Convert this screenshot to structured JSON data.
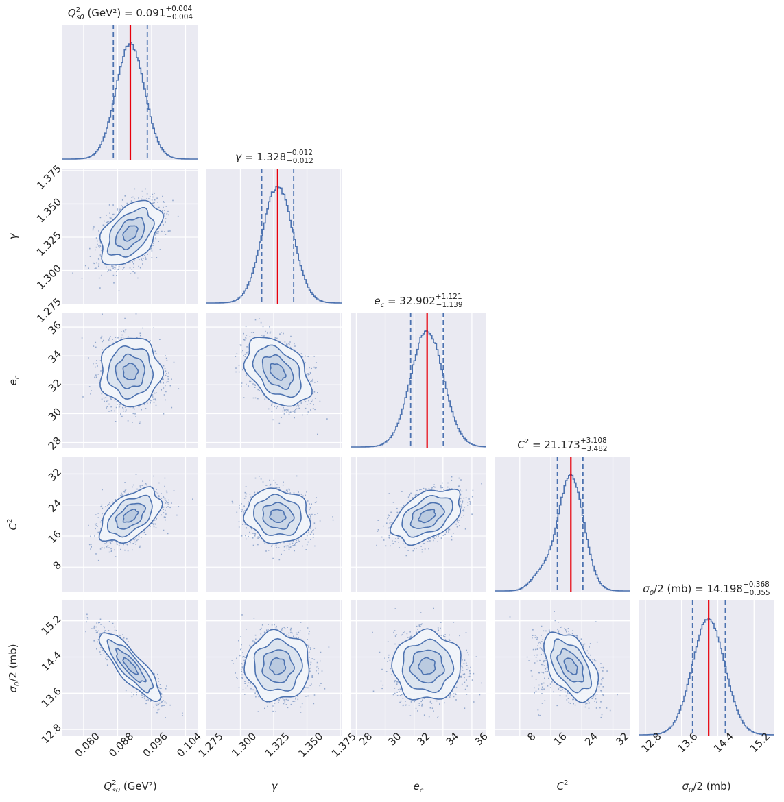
{
  "chart_data": {
    "type": "corner",
    "parameters": [
      {
        "key": "Qs0",
        "label": "Q²s0 (GeV²)",
        "sym": "Q",
        "sup": "2",
        "sub": "s0",
        "unit": " (GeV²)",
        "median": 0.091,
        "plus": 0.004,
        "minus": 0.004,
        "sigma": 0.0034,
        "range": [
          0.075,
          0.107
        ],
        "ticks": [
          0.08,
          0.088,
          0.096,
          0.104
        ],
        "tick_labels": [
          "0.080",
          "0.088",
          "0.096",
          "0.104"
        ],
        "title_value": "0.091",
        "title_plus": "+0.004",
        "title_minus": "−0.004"
      },
      {
        "key": "gamma",
        "label": "γ",
        "sym": "γ",
        "sup": "",
        "sub": "",
        "unit": "",
        "median": 1.328,
        "plus": 0.012,
        "minus": 0.012,
        "sigma": 0.0115,
        "range": [
          1.2745,
          1.3765
        ],
        "ticks": [
          1.275,
          1.3,
          1.325,
          1.35,
          1.375
        ],
        "tick_labels": [
          "1.275",
          "1.300",
          "1.325",
          "1.350",
          "1.375"
        ],
        "title_value": "1.328",
        "title_plus": "+0.012",
        "title_minus": "−0.012"
      },
      {
        "key": "ec",
        "label": "e_c",
        "sym": "e",
        "sup": "",
        "sub": "c",
        "unit": "",
        "median": 32.902,
        "plus": 1.121,
        "minus": 1.139,
        "sigma": 1.13,
        "range": [
          27.6,
          37.0
        ],
        "ticks": [
          28,
          30,
          32,
          34,
          36
        ],
        "tick_labels": [
          "28",
          "30",
          "32",
          "34",
          "36"
        ],
        "title_value": "32.902",
        "title_plus": "+1.121",
        "title_minus": "−1.139"
      },
      {
        "key": "C2",
        "label": "C²",
        "sym": "C",
        "sup": "2",
        "sub": "",
        "unit": "",
        "median": 21.173,
        "plus": 3.108,
        "minus": 3.482,
        "sigma": 3.3,
        "range": [
          1.5,
          36.5
        ],
        "ticks": [
          8,
          16,
          24,
          32
        ],
        "tick_labels": [
          "8",
          "16",
          "24",
          "32"
        ],
        "title_value": "21.173",
        "title_plus": "+3.108",
        "title_minus": "−3.482"
      },
      {
        "key": "sigma0",
        "label": "σ0/2 (mb)",
        "sym": "σ",
        "sup": "",
        "sub": "0",
        "unit": "/2 (mb)",
        "median": 14.198,
        "plus": 0.368,
        "minus": 0.355,
        "sigma": 0.36,
        "range": [
          12.65,
          15.65
        ],
        "ticks": [
          12.8,
          13.6,
          14.4,
          15.2
        ],
        "tick_labels": [
          "12.8",
          "13.6",
          "14.4",
          "15.2"
        ],
        "title_value": "14.198",
        "title_plus": "+0.368",
        "title_minus": "−0.355"
      }
    ],
    "correlations": {
      "1,0": 0.45,
      "2,0": 0.0,
      "2,1": -0.4,
      "3,0": 0.5,
      "3,1": -0.1,
      "3,2": 0.45,
      "4,0": -0.85,
      "4,1": 0.0,
      "4,2": 0.0,
      "4,3": -0.5
    },
    "median_line_color": "#e8000b",
    "series_color": "#4c72b0",
    "panel_background": "#eaeaf2",
    "grid": true,
    "quantile_lines": "dashed"
  }
}
